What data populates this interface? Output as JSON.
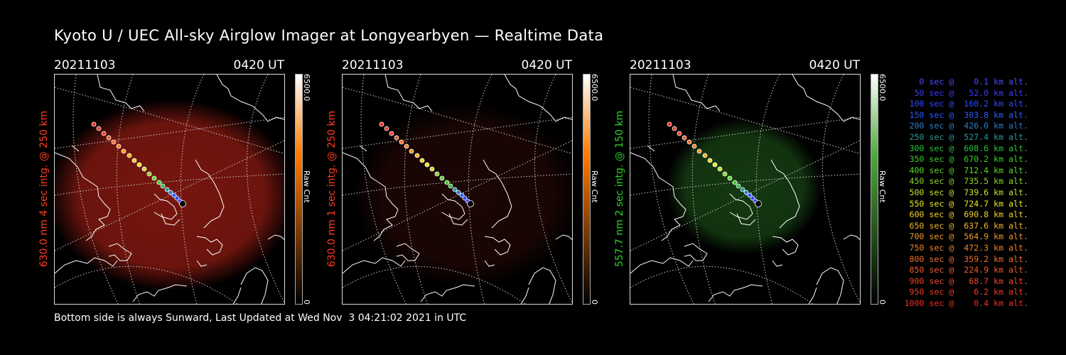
{
  "title": "Kyoto U / UEC All-sky Airglow Imager at Longyearbyen — Realtime Data",
  "footer": "Bottom side is always Sunward, Last Updated at Wed Nov  3 04:21:02 2021 in UTC",
  "panels": [
    {
      "date": "20211103",
      "time": "0420 UT",
      "ylabel": "630.0 nm 4 sec intg. @ 250 km",
      "cbar_max": "6500.0",
      "cbar_unit": "Raw Cnt",
      "cbar_min": "0",
      "color": "#ff3b1f",
      "glow": "#8b1a12",
      "cbar_top": "#ffffff",
      "cbar_mid": "#ff7a00",
      "cbar_bottom": "#000000",
      "glow_strength": 0.85
    },
    {
      "date": "20211103",
      "time": "0420 UT",
      "ylabel": "630.0 nm 1 sec intg. @ 250 km",
      "cbar_max": "6500.0",
      "cbar_unit": "Raw Cnt",
      "cbar_min": "0",
      "color": "#ff3b1f",
      "glow": "#3a0d09",
      "cbar_top": "#ffffff",
      "cbar_mid": "#ff7a00",
      "cbar_bottom": "#000000",
      "glow_strength": 0.45
    },
    {
      "date": "20211103",
      "time": "0420 UT",
      "ylabel": "557.7 nm 2 sec intg. @ 150 km",
      "cbar_max": "6500.0",
      "cbar_unit": "Raw Cnt",
      "cbar_min": "0",
      "color": "#27d327",
      "glow": "#1b4a17",
      "cbar_top": "#ffffff",
      "cbar_mid": "#4caa3a",
      "cbar_bottom": "#000000",
      "glow_strength": 0.75
    }
  ],
  "legend": [
    {
      "text": "   0 sec @    0.1 km alt.",
      "color": "#4a4aff"
    },
    {
      "text": "  50 sec @   52.0 km alt.",
      "color": "#3c3cff"
    },
    {
      "text": " 100 sec @  160.2 km alt.",
      "color": "#2f4bff"
    },
    {
      "text": " 150 sec @  303.8 km alt.",
      "color": "#2a5cff"
    },
    {
      "text": " 200 sec @  426.0 km alt.",
      "color": "#2a7ac8"
    },
    {
      "text": " 250 sec @  527.4 km alt.",
      "color": "#2a9a9a"
    },
    {
      "text": " 300 sec @  608.6 km alt.",
      "color": "#22c83a"
    },
    {
      "text": " 350 sec @  670.2 km alt.",
      "color": "#3ad028"
    },
    {
      "text": " 400 sec @  712.4 km alt.",
      "color": "#5ad828"
    },
    {
      "text": " 450 sec @  735.5 km alt.",
      "color": "#8cd828"
    },
    {
      "text": " 500 sec @  739.6 km alt.",
      "color": "#c8e028"
    },
    {
      "text": " 550 sec @  724.7 km alt.",
      "color": "#e8e828"
    },
    {
      "text": " 600 sec @  690.8 km alt.",
      "color": "#f0d028"
    },
    {
      "text": " 650 sec @  637.6 km alt.",
      "color": "#f0b428"
    },
    {
      "text": " 700 sec @  564.9 km alt.",
      "color": "#f09a28"
    },
    {
      "text": " 750 sec @  472.3 km alt.",
      "color": "#f08228"
    },
    {
      "text": " 800 sec @  359.2 km alt.",
      "color": "#f06e28"
    },
    {
      "text": " 850 sec @  224.9 km alt.",
      "color": "#f05a28"
    },
    {
      "text": " 900 sec @   68.7 km alt.",
      "color": "#f04628"
    },
    {
      "text": " 950 sec @    6.2 km alt.",
      "color": "#f03a28"
    },
    {
      "text": "1000 sec @    0.4 km alt.",
      "color": "#f02e28"
    }
  ]
}
